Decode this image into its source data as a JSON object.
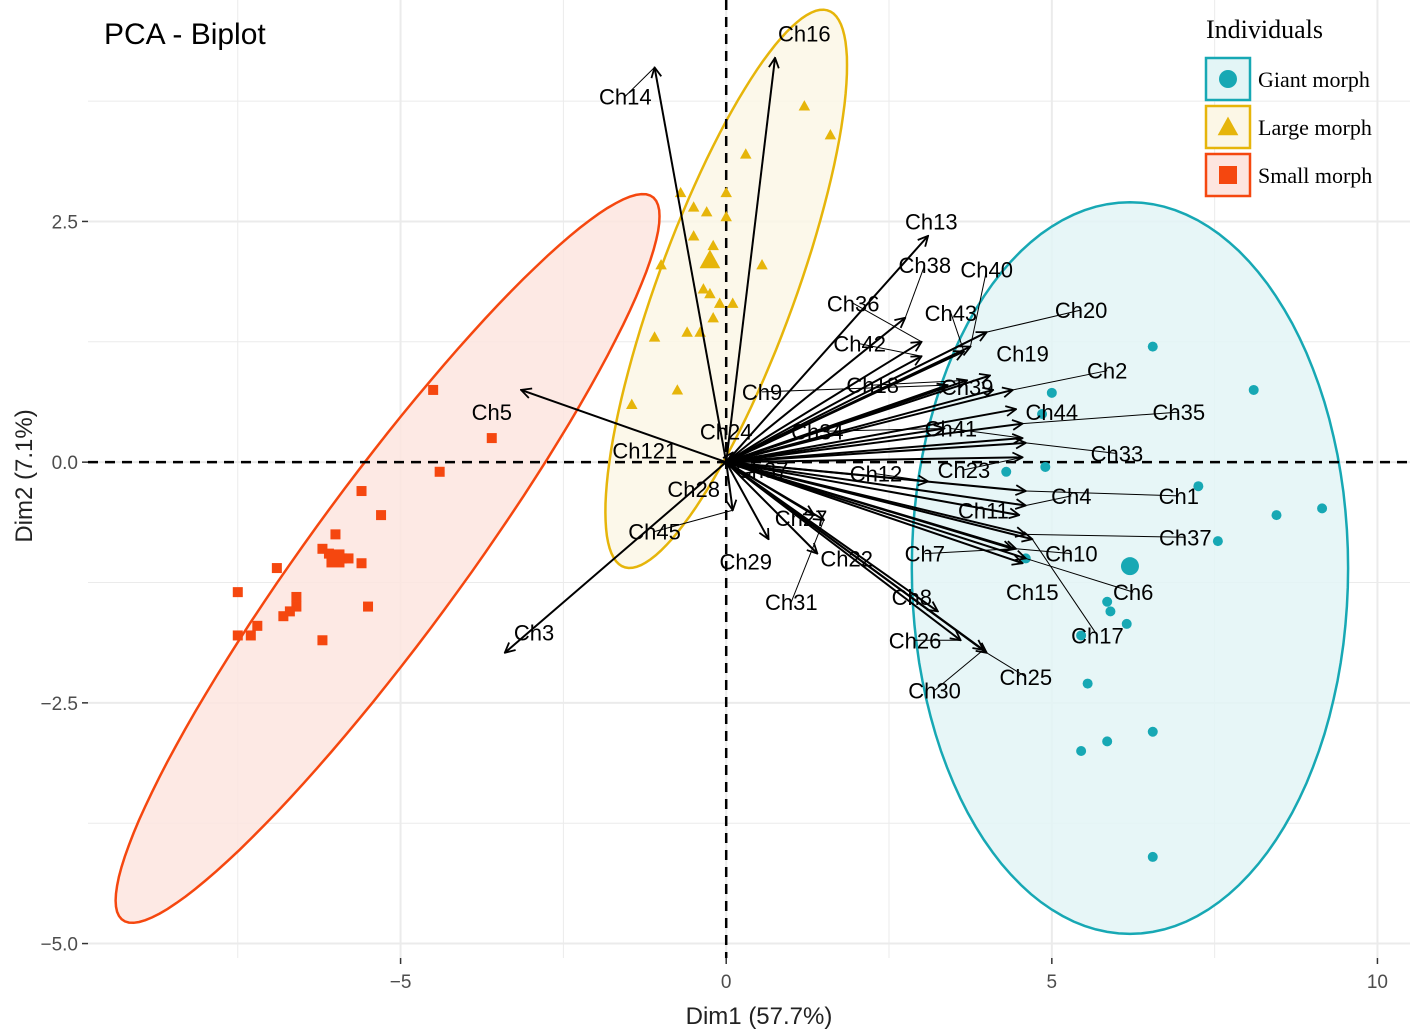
{
  "chart_data": {
    "type": "scatter",
    "title": "PCA - Biplot",
    "xlabel": "Dim1 (57.7%)",
    "ylabel": "Dim2 (7.1%)",
    "xlim": [
      -9.8,
      10.5
    ],
    "ylim": [
      -5.15,
      4.8
    ],
    "x_ticks": [
      {
        "v": -5,
        "label": "−5"
      },
      {
        "v": 0,
        "label": "0"
      },
      {
        "v": 5,
        "label": "5"
      },
      {
        "v": 10,
        "label": "10"
      }
    ],
    "y_ticks": [
      {
        "v": 2.5,
        "label": "2.5"
      },
      {
        "v": 0,
        "label": "0.0"
      },
      {
        "v": -2.5,
        "label": "−2.5"
      },
      {
        "v": -5,
        "label": "−5.0"
      }
    ],
    "grid": true,
    "legend": {
      "title": "Individuals",
      "position": "top-right",
      "items": [
        {
          "label": "Giant morph",
          "color": "#17a8b4",
          "shape": "circle"
        },
        {
          "label": "Large morph",
          "color": "#e6b50a",
          "shape": "triangle"
        },
        {
          "label": "Small morph",
          "color": "#f5470f",
          "shape": "square"
        }
      ]
    },
    "groups": [
      {
        "name": "Small morph",
        "color": "#f5470f",
        "fill": "#fde5df",
        "shape": "square",
        "ellipse": {
          "cx": -5.2,
          "cy": -1.0,
          "a": 5.55,
          "b": 0.98,
          "angle_deg": 42
        },
        "centroid": [
          -6.0,
          -1.0
        ],
        "points": [
          [
            -4.5,
            0.75
          ],
          [
            -3.6,
            0.25
          ],
          [
            -4.4,
            -0.1
          ],
          [
            -5.6,
            -0.3
          ],
          [
            -5.3,
            -0.55
          ],
          [
            -6.0,
            -0.75
          ],
          [
            -6.2,
            -0.9
          ],
          [
            -6.1,
            -0.95
          ],
          [
            -6.0,
            -1.0
          ],
          [
            -5.9,
            -1.0
          ],
          [
            -5.8,
            -1.0
          ],
          [
            -5.6,
            -1.05
          ],
          [
            -6.9,
            -1.1
          ],
          [
            -6.6,
            -1.4
          ],
          [
            -6.6,
            -1.5
          ],
          [
            -6.7,
            -1.55
          ],
          [
            -6.8,
            -1.6
          ],
          [
            -7.2,
            -1.7
          ],
          [
            -7.3,
            -1.8
          ],
          [
            -7.5,
            -1.8
          ],
          [
            -5.5,
            -1.5
          ],
          [
            -6.2,
            -1.85
          ],
          [
            -7.5,
            -1.35
          ]
        ]
      },
      {
        "name": "Large morph",
        "color": "#e6b50a",
        "fill": "#fcf7e6",
        "shape": "triangle",
        "ellipse": {
          "cx": 0.0,
          "cy": 1.8,
          "a": 3.3,
          "b": 0.98,
          "angle_deg": 60
        },
        "centroid": [
          -0.25,
          2.1
        ],
        "points": [
          [
            1.2,
            3.7
          ],
          [
            1.6,
            3.4
          ],
          [
            0.3,
            3.2
          ],
          [
            -0.7,
            2.8
          ],
          [
            0.0,
            2.8
          ],
          [
            -0.5,
            2.65
          ],
          [
            -0.3,
            2.6
          ],
          [
            0.0,
            2.55
          ],
          [
            -0.5,
            2.35
          ],
          [
            -0.2,
            2.25
          ],
          [
            -1.0,
            2.05
          ],
          [
            0.55,
            2.05
          ],
          [
            -0.35,
            1.8
          ],
          [
            -0.25,
            1.75
          ],
          [
            -0.1,
            1.65
          ],
          [
            0.1,
            1.65
          ],
          [
            -0.2,
            1.5
          ],
          [
            -0.4,
            1.35
          ],
          [
            -0.6,
            1.35
          ],
          [
            -1.1,
            1.3
          ],
          [
            -0.75,
            0.75
          ],
          [
            -1.45,
            0.6
          ]
        ]
      },
      {
        "name": "Giant morph",
        "color": "#17a8b4",
        "fill": "#e3f5f6",
        "shape": "circle",
        "ellipse": {
          "cx": 6.2,
          "cy": -1.1,
          "a": 3.35,
          "b": 3.8,
          "angle_deg": 0
        },
        "centroid": [
          6.2,
          -1.08
        ],
        "points": [
          [
            6.55,
            1.2
          ],
          [
            8.1,
            0.75
          ],
          [
            5.0,
            0.72
          ],
          [
            4.85,
            0.5
          ],
          [
            4.9,
            -0.05
          ],
          [
            4.3,
            -0.1
          ],
          [
            7.25,
            -0.25
          ],
          [
            9.15,
            -0.48
          ],
          [
            8.45,
            -0.55
          ],
          [
            7.55,
            -0.82
          ],
          [
            4.6,
            -1.0
          ],
          [
            5.85,
            -1.45
          ],
          [
            5.9,
            -1.55
          ],
          [
            6.15,
            -1.68
          ],
          [
            5.45,
            -1.8
          ],
          [
            5.55,
            -2.3
          ],
          [
            6.55,
            -2.8
          ],
          [
            5.85,
            -2.9
          ],
          [
            5.45,
            -3.0
          ],
          [
            6.55,
            -4.1
          ]
        ]
      }
    ],
    "variables": [
      {
        "name": "Ch16",
        "x": 0.75,
        "y": 4.2,
        "lx": 1.2,
        "ly": 4.45
      },
      {
        "name": "Ch14",
        "x": -1.1,
        "y": 4.1,
        "lx": -1.55,
        "ly": 3.8
      },
      {
        "name": "Ch13",
        "x": 3.1,
        "y": 2.35,
        "lx": 3.15,
        "ly": 2.5
      },
      {
        "name": "Ch38",
        "x": 2.75,
        "y": 1.5,
        "lx": 3.05,
        "ly": 2.05
      },
      {
        "name": "Ch40",
        "x": 3.75,
        "y": 1.2,
        "lx": 4.0,
        "ly": 2.0
      },
      {
        "name": "Ch36",
        "x": 3.0,
        "y": 1.25,
        "lx": 1.95,
        "ly": 1.65
      },
      {
        "name": "Ch43",
        "x": 3.65,
        "y": 1.15,
        "lx": 3.45,
        "ly": 1.55
      },
      {
        "name": "Ch20",
        "x": 4.0,
        "y": 1.35,
        "lx": 5.45,
        "ly": 1.58
      },
      {
        "name": "Ch42",
        "x": 3.0,
        "y": 1.1,
        "lx": 2.05,
        "ly": 1.23
      },
      {
        "name": "Ch19",
        "x": 4.05,
        "y": 0.9,
        "lx": 4.55,
        "ly": 1.13
      },
      {
        "name": "Ch18",
        "x": 3.7,
        "y": 0.85,
        "lx": 2.25,
        "ly": 0.8
      },
      {
        "name": "Ch9",
        "x": 3.4,
        "y": 0.8,
        "lx": 0.55,
        "ly": 0.73
      },
      {
        "name": "Ch39",
        "x": 4.1,
        "y": 0.75,
        "lx": 3.7,
        "ly": 0.78
      },
      {
        "name": "Ch2",
        "x": 4.4,
        "y": 0.75,
        "lx": 5.85,
        "ly": 0.95
      },
      {
        "name": "Ch44",
        "x": 4.45,
        "y": 0.55,
        "lx": 5.0,
        "ly": 0.52
      },
      {
        "name": "Ch35",
        "x": 4.55,
        "y": 0.4,
        "lx": 6.95,
        "ly": 0.52
      },
      {
        "name": "Ch34",
        "x": 3.35,
        "y": 0.35,
        "lx": 1.4,
        "ly": 0.32
      },
      {
        "name": "Ch41",
        "x": 4.55,
        "y": 0.25,
        "lx": 3.45,
        "ly": 0.35
      },
      {
        "name": "Ch24",
        "x": 0.1,
        "y": 0.1,
        "lx": 0.0,
        "ly": 0.32
      },
      {
        "name": "Ch121",
        "x": 0.0,
        "y": 0.0,
        "lx": -1.25,
        "ly": 0.12
      },
      {
        "name": "Ch33",
        "x": 4.6,
        "y": 0.2,
        "lx": 6.0,
        "ly": 0.09
      },
      {
        "name": "Ch23",
        "x": 4.55,
        "y": 0.05,
        "lx": 3.65,
        "ly": -0.08
      },
      {
        "name": "Ch37",
        "x": 0.45,
        "y": -0.1,
        "lx": 0.55,
        "ly": -0.08
      },
      {
        "name": "Ch12",
        "x": 3.1,
        "y": -0.2,
        "lx": 2.3,
        "ly": -0.12
      },
      {
        "name": "Ch1",
        "x": 4.6,
        "y": -0.3,
        "lx": 6.95,
        "ly": -0.35
      },
      {
        "name": "Ch4",
        "x": 4.6,
        "y": -0.45,
        "lx": 5.3,
        "ly": -0.35
      },
      {
        "name": "Ch28",
        "x": 0.0,
        "y": 0.0,
        "lx": -0.5,
        "ly": -0.28
      },
      {
        "name": "Ch11",
        "x": 4.5,
        "y": -0.55,
        "lx": 3.95,
        "ly": -0.5
      },
      {
        "name": "Ch27",
        "x": 1.35,
        "y": -0.55,
        "lx": 1.15,
        "ly": -0.58
      },
      {
        "name": "Ch45",
        "x": 0.1,
        "y": -0.5,
        "lx": -1.1,
        "ly": -0.72
      },
      {
        "name": "Ch37",
        "x": 4.6,
        "y": -0.75,
        "lx": 7.05,
        "ly": -0.78
      },
      {
        "name": "Ch7",
        "x": 4.4,
        "y": -0.9,
        "lx": 3.05,
        "ly": -0.95
      },
      {
        "name": "Ch10",
        "x": 4.45,
        "y": -0.9,
        "lx": 5.3,
        "ly": -0.95
      },
      {
        "name": "Ch22",
        "x": 1.4,
        "y": -0.95,
        "lx": 1.85,
        "ly": -1.0
      },
      {
        "name": "Ch29",
        "x": 0.65,
        "y": -0.8,
        "lx": 0.3,
        "ly": -1.03
      },
      {
        "name": "Ch6",
        "x": 4.6,
        "y": -1.0,
        "lx": 6.25,
        "ly": -1.35
      },
      {
        "name": "Ch15",
        "x": 4.55,
        "y": -1.05,
        "lx": 4.7,
        "ly": -1.35
      },
      {
        "name": "Ch8",
        "x": 3.25,
        "y": -1.55,
        "lx": 2.85,
        "ly": -1.4
      },
      {
        "name": "Ch31",
        "x": 1.5,
        "y": -0.6,
        "lx": 1.0,
        "ly": -1.45
      },
      {
        "name": "Ch17",
        "x": 4.7,
        "y": -0.8,
        "lx": 5.7,
        "ly": -1.8
      },
      {
        "name": "Ch3",
        "x": -3.4,
        "y": -1.98,
        "lx": -2.95,
        "ly": -1.77
      },
      {
        "name": "Ch26",
        "x": 3.6,
        "y": -1.85,
        "lx": 2.9,
        "ly": -1.85
      },
      {
        "name": "Ch25",
        "x": 4.0,
        "y": -1.98,
        "lx": 4.6,
        "ly": -2.23
      },
      {
        "name": "Ch30",
        "x": 3.95,
        "y": -1.95,
        "lx": 3.2,
        "ly": -2.37
      },
      {
        "name": "Ch5",
        "x": -3.15,
        "y": 0.75,
        "lx": -3.6,
        "ly": 0.52
      }
    ]
  }
}
